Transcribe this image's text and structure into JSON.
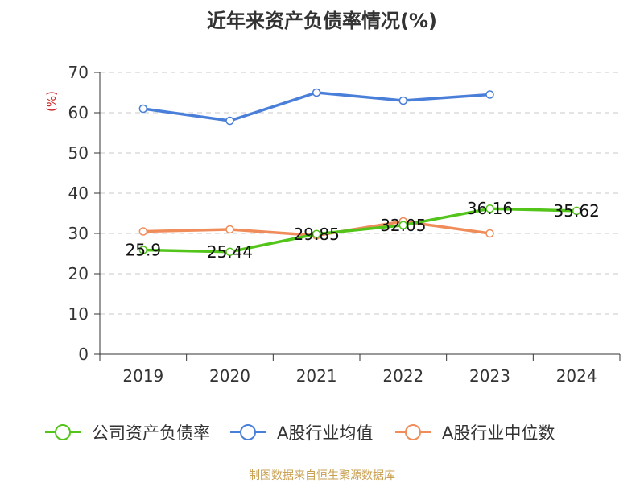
{
  "chart_data": {
    "type": "line",
    "title": "近年来资产负债率情况(%)",
    "ylabel": "(%)",
    "ylim": [
      0,
      70
    ],
    "yticks": [
      0,
      10,
      20,
      30,
      40,
      50,
      60,
      70
    ],
    "categories": [
      "2019",
      "2020",
      "2021",
      "2022",
      "2023",
      "2024"
    ],
    "grid": "horizontal-dashed",
    "legend_position": "bottom",
    "series": [
      {
        "name": "公司资产负债率",
        "color": "#52c41a",
        "values": [
          25.9,
          25.44,
          29.85,
          32.05,
          36.16,
          35.62
        ],
        "labels": [
          "25.9",
          "25.44",
          "29.85",
          "32.05",
          "36.16",
          "35.62"
        ]
      },
      {
        "name": "A股行业均值",
        "color": "#4a7fd9",
        "values": [
          61,
          58,
          65,
          63,
          64.5,
          null
        ]
      },
      {
        "name": "A股行业中位数",
        "color": "#f08c5a",
        "values": [
          30.5,
          31,
          29.5,
          33,
          30,
          null
        ]
      }
    ]
  },
  "footer": {
    "source": "制图数据来自恒生聚源数据库"
  }
}
